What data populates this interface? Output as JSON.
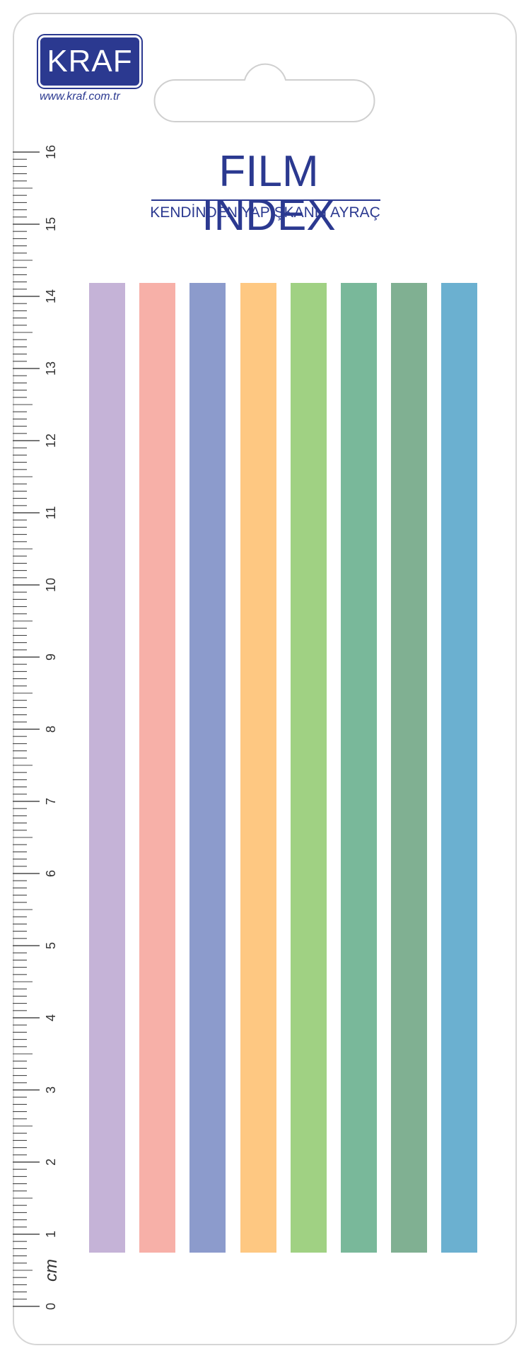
{
  "brand": {
    "logo_text": "KRAF",
    "url": "www.kraf.com.tr",
    "color": "#2b3990"
  },
  "product": {
    "title": "FILM INDEX",
    "subtitle": "KENDİNDEN YAPIŞKANLI AYRAÇ"
  },
  "ruler": {
    "unit_label": "cm",
    "labels": [
      "0",
      "1",
      "2",
      "3",
      "4",
      "5",
      "6",
      "7",
      "8",
      "9",
      "10",
      "11",
      "12",
      "13",
      "14",
      "15",
      "16"
    ]
  },
  "strips": [
    {
      "color": "#c5b3d7"
    },
    {
      "color": "#f7b0a8"
    },
    {
      "color": "#8c9bcc"
    },
    {
      "color": "#fec882"
    },
    {
      "color": "#a0d183"
    },
    {
      "color": "#79b89a"
    },
    {
      "color": "#80b092"
    },
    {
      "color": "#6bb0d0"
    }
  ]
}
